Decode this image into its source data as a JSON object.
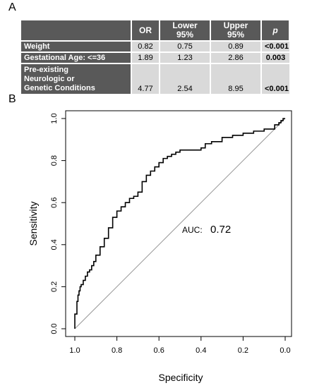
{
  "panel_a_label": "A",
  "panel_b_label": "B",
  "table": {
    "headers": [
      "",
      "OR",
      "Lower 95%",
      "Upper 95%",
      "p"
    ],
    "rows": [
      {
        "name_lines": [
          "Weight"
        ],
        "or": "0.82",
        "lower": "0.75",
        "upper": "0.89",
        "p": "<0.001"
      },
      {
        "name_lines": [
          "Gestational Age: <=36"
        ],
        "or": "1.89",
        "lower": "1.23",
        "upper": "2.86",
        "p": "0.003"
      },
      {
        "name_lines": [
          "Pre-existing",
          "Neurologic or",
          "Genetic Conditions"
        ],
        "or": "4.77",
        "lower": "2.54",
        "upper": "8.95",
        "p": "<0.001"
      }
    ]
  },
  "chart_data": {
    "type": "line",
    "xlabel": "Specificity",
    "ylabel": "Sensitivity",
    "xlim": [
      1.0,
      0.0
    ],
    "ylim": [
      0.0,
      1.0
    ],
    "x_ticks": [
      "1.0",
      "0.8",
      "0.6",
      "0.4",
      "0.2",
      "0.0"
    ],
    "y_ticks": [
      "0.0",
      "0.2",
      "0.4",
      "0.6",
      "0.8",
      "1.0"
    ],
    "annotation_label": "AUC:",
    "annotation_value": "0.72",
    "reference_line": [
      [
        1.0,
        0.0
      ],
      [
        0.0,
        1.0
      ]
    ],
    "series": [
      {
        "specificity": [
          1.0,
          1.0,
          0.99,
          0.99,
          0.985,
          0.98,
          0.975,
          0.97,
          0.96,
          0.95,
          0.94,
          0.93,
          0.92,
          0.91,
          0.9,
          0.88,
          0.86,
          0.84,
          0.82,
          0.8,
          0.78,
          0.76,
          0.74,
          0.72,
          0.7,
          0.68,
          0.66,
          0.64,
          0.62,
          0.6,
          0.58,
          0.56,
          0.54,
          0.52,
          0.5,
          0.45,
          0.4,
          0.38,
          0.35,
          0.3,
          0.25,
          0.2,
          0.15,
          0.1,
          0.05,
          0.03,
          0.02,
          0.01,
          0.0
        ],
        "sensitivity": [
          0.0,
          0.05,
          0.07,
          0.1,
          0.13,
          0.16,
          0.18,
          0.2,
          0.21,
          0.23,
          0.25,
          0.27,
          0.28,
          0.3,
          0.32,
          0.35,
          0.39,
          0.43,
          0.48,
          0.53,
          0.56,
          0.58,
          0.6,
          0.62,
          0.63,
          0.65,
          0.7,
          0.73,
          0.75,
          0.77,
          0.79,
          0.81,
          0.82,
          0.83,
          0.84,
          0.85,
          0.85,
          0.86,
          0.88,
          0.89,
          0.91,
          0.92,
          0.93,
          0.94,
          0.95,
          0.97,
          0.98,
          0.99,
          1.0
        ]
      }
    ]
  }
}
